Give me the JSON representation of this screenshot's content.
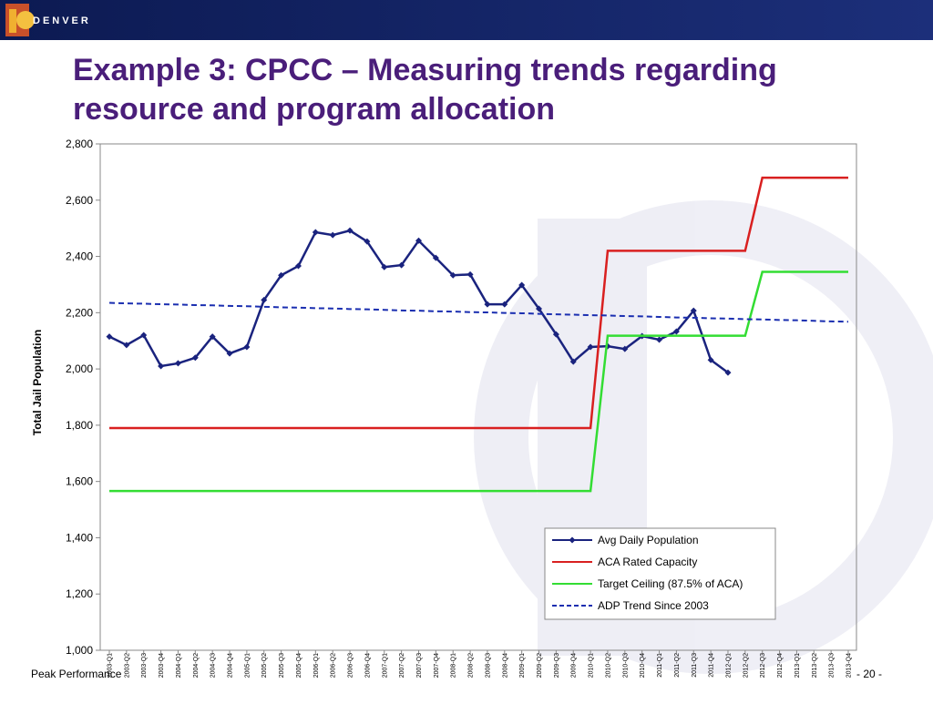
{
  "slide": {
    "logo": "DENVER",
    "title_lines": [
      "Example 3: CPCC – Measuring trends regarding",
      "resource and program allocation"
    ],
    "footer_left": "Peak Performance",
    "page": "- 20 -"
  },
  "chart_data": {
    "type": "line",
    "y_label": "Total Jail Population",
    "categories": [
      "2003-Q1",
      "2003-Q2",
      "2003-Q3",
      "2003-Q4",
      "2004-Q1",
      "2004-Q2",
      "2004-Q3",
      "2004-Q4",
      "2005-Q1",
      "2005-Q2",
      "2005-Q3",
      "2005-Q4",
      "2006-Q1",
      "2006-Q2",
      "2006-Q3",
      "2006-Q4",
      "2007-Q1",
      "2007-Q2",
      "2007-Q3",
      "2007-Q4",
      "2008-Q1",
      "2008-Q2",
      "2008-Q3",
      "2008-Q4",
      "2009-Q1",
      "2009-Q2",
      "2009-Q3",
      "2009-Q4",
      "2010-Q1",
      "2010-Q2",
      "2010-Q3",
      "2010-Q4",
      "2011-Q1",
      "2011-Q2",
      "2011-Q3",
      "2011-Q4",
      "2012-Q1",
      "2012-Q2",
      "2012-Q3",
      "2012-Q4",
      "2013-Q1",
      "2013-Q2",
      "2013-Q3",
      "2013-Q4"
    ],
    "ylim": [
      1000,
      2800
    ],
    "yticks": [
      {
        "value": 1000,
        "label": "1,000"
      },
      {
        "value": 1200,
        "label": "1,200"
      },
      {
        "value": 1400,
        "label": "1,400"
      },
      {
        "value": 1600,
        "label": "1,600"
      },
      {
        "value": 1800,
        "label": "1,800"
      },
      {
        "value": 2000,
        "label": "2,000"
      },
      {
        "value": 2200,
        "label": "2,200"
      },
      {
        "value": 2400,
        "label": "2,400"
      },
      {
        "value": 2600,
        "label": "2,600"
      },
      {
        "value": 2800,
        "label": "2,800"
      }
    ],
    "legend": "lower right",
    "series": [
      {
        "name": "Avg Daily Population",
        "color": "#1a237e",
        "marker": "diamond",
        "values": [
          2115,
          2085,
          2120,
          2010,
          2020,
          2040,
          2115,
          2055,
          2078,
          2245,
          2333,
          2366,
          2486,
          2476,
          2492,
          2453,
          2362,
          2369,
          2456,
          2395,
          2333,
          2336,
          2230,
          2230,
          2298,
          2214,
          2123,
          2026,
          2078,
          2081,
          2071,
          2117,
          2104,
          2133,
          2207,
          2032,
          1987,
          null,
          null,
          null,
          null,
          null,
          null,
          null
        ]
      },
      {
        "name": "ACA Rated Capacity",
        "color": "#d92020",
        "values": [
          1790,
          1790,
          1790,
          1790,
          1790,
          1790,
          1790,
          1790,
          1790,
          1790,
          1790,
          1790,
          1790,
          1790,
          1790,
          1790,
          1790,
          1790,
          1790,
          1790,
          1790,
          1790,
          1790,
          1790,
          1790,
          1790,
          1790,
          1790,
          1790,
          2420,
          2420,
          2420,
          2420,
          2420,
          2420,
          2420,
          2420,
          2420,
          2680,
          2680,
          2680,
          2680,
          2680,
          2680
        ]
      },
      {
        "name": "Target Ceiling (87.5% of ACA)",
        "color": "#33dd33",
        "values": [
          1566,
          1566,
          1566,
          1566,
          1566,
          1566,
          1566,
          1566,
          1566,
          1566,
          1566,
          1566,
          1566,
          1566,
          1566,
          1566,
          1566,
          1566,
          1566,
          1566,
          1566,
          1566,
          1566,
          1566,
          1566,
          1566,
          1566,
          1566,
          1566,
          2118,
          2118,
          2118,
          2118,
          2118,
          2118,
          2118,
          2118,
          2118,
          2345,
          2345,
          2345,
          2345,
          2345,
          2345
        ]
      },
      {
        "name": "ADP Trend Since 2003",
        "color": "#1a2eb0",
        "dash": true,
        "values": [
          2235,
          2233,
          2232,
          2230,
          2229,
          2227,
          2226,
          2224,
          2223,
          2221,
          2219,
          2218,
          2216,
          2215,
          2213,
          2212,
          2210,
          2208,
          2207,
          2205,
          2204,
          2202,
          2201,
          2199,
          2198,
          2196,
          2194,
          2193,
          2191,
          2190,
          2188,
          2187,
          2185,
          2183,
          2182,
          2180,
          2179,
          2177,
          2176,
          2174,
          2173,
          2171,
          2169,
          2168
        ]
      }
    ]
  }
}
